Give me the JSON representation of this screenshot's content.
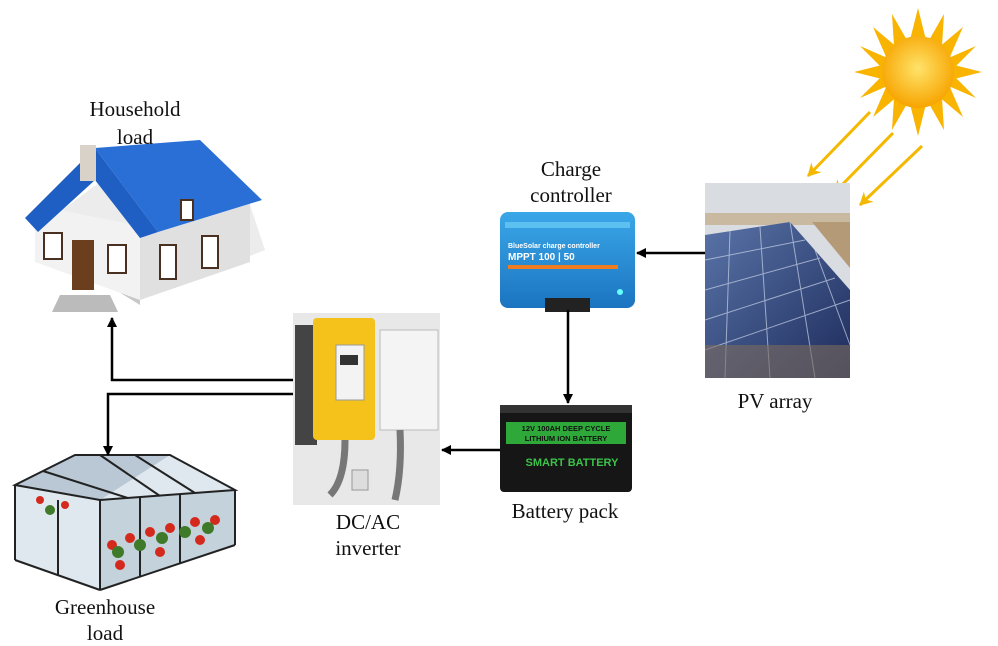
{
  "nodes": [
    {
      "id": "household",
      "label_lines": [
        "Household",
        "load"
      ]
    },
    {
      "id": "charge-controller",
      "label_lines": [
        "Charge",
        "controller"
      ],
      "device_text": [
        "BlueSolar charge controller",
        "MPPT 100 | 50"
      ]
    },
    {
      "id": "pv-array",
      "label_lines": [
        "PV array"
      ]
    },
    {
      "id": "battery",
      "label_lines": [
        "Battery pack"
      ],
      "device_text": [
        "12V 100AH DEEP CYCLE",
        "LITHIUM ION BATTERY",
        "SMART BATTERY"
      ]
    },
    {
      "id": "inverter",
      "label_lines": [
        "DC/AC",
        "inverter"
      ]
    },
    {
      "id": "greenhouse",
      "label_lines": [
        "Greenhouse",
        "load"
      ]
    }
  ]
}
